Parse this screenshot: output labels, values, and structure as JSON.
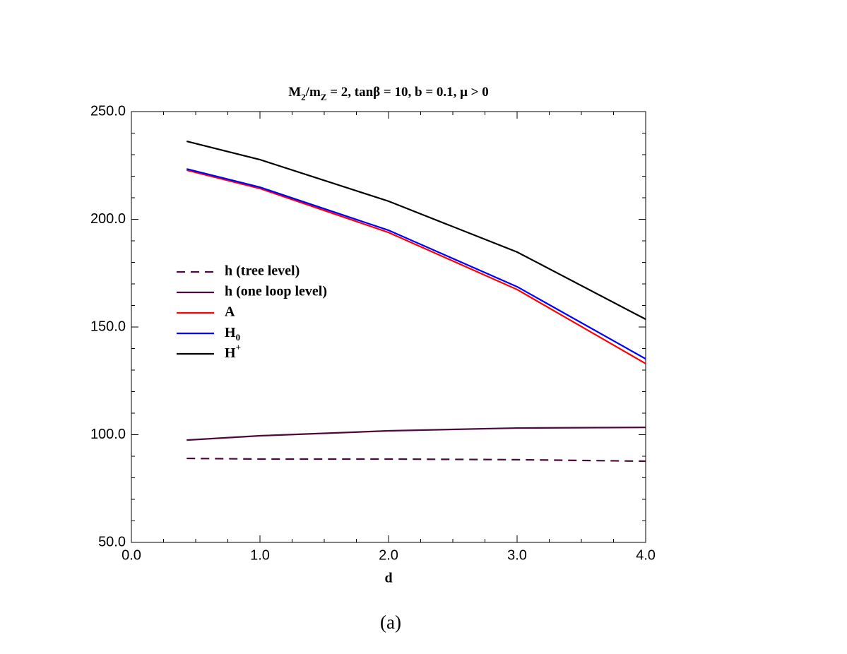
{
  "chart_data": {
    "type": "line",
    "title_parts": [
      {
        "text": "M"
      },
      {
        "text": "2",
        "sub": true
      },
      {
        "text": "/m"
      },
      {
        "text": "Z",
        "sub": true
      },
      {
        "text": " = 2, tanβ = 10, b = 0.1, μ > 0"
      }
    ],
    "x_label": "d",
    "caption": "(a)",
    "x": [
      0.43,
      1.0,
      2.0,
      3.0,
      4.0
    ],
    "series": [
      {
        "name": "h (tree level)",
        "color": "#4b0a3c",
        "dash": true,
        "values": [
          89.0,
          88.7,
          88.7,
          88.4,
          87.7
        ]
      },
      {
        "name": "h (one loop level)",
        "color": "#4b0a3c",
        "values": [
          97.5,
          99.5,
          101.8,
          103.1,
          103.4
        ]
      },
      {
        "name": "A",
        "color": "#ff0000",
        "values": [
          222.8,
          214.3,
          193.9,
          167.4,
          133.0
        ]
      },
      {
        "name": "H0",
        "color": "#0000ff",
        "name_style": "sub",
        "values": [
          223.4,
          214.9,
          194.9,
          168.7,
          135.2
        ]
      },
      {
        "name": "H+",
        "color": "#000000",
        "name_style": "sup",
        "values": [
          236.2,
          227.7,
          208.4,
          184.8,
          153.6
        ]
      }
    ],
    "xlim": [
      0,
      4
    ],
    "ylim": [
      50,
      250
    ],
    "xticks": [
      {
        "value": 0,
        "label": "0.0"
      },
      {
        "value": 1,
        "label": "1.0"
      },
      {
        "value": 2,
        "label": "2.0"
      },
      {
        "value": 3,
        "label": "3.0"
      },
      {
        "value": 4,
        "label": "4.0"
      }
    ],
    "yticks": [
      {
        "value": 50,
        "label": "50.0"
      },
      {
        "value": 100,
        "label": "100.0"
      },
      {
        "value": 150,
        "label": "150.0"
      },
      {
        "value": 200,
        "label": "200.0"
      },
      {
        "value": 250,
        "label": "250.0"
      }
    ],
    "minor_step": {
      "x": 0.25,
      "y": 10
    },
    "legend": "left"
  }
}
